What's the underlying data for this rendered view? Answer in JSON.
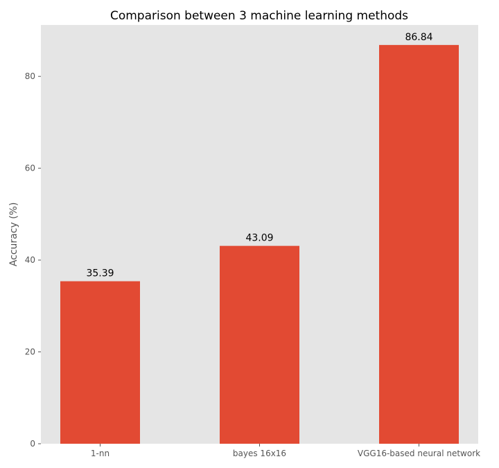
{
  "chart_data": {
    "type": "bar",
    "title": "Comparison between 3 machine learning methods",
    "xlabel": "",
    "ylabel": "Accuracy (%)",
    "categories": [
      "1-nn",
      "bayes 16x16",
      "VGG16-based neural network"
    ],
    "values": [
      35.39,
      43.09,
      86.84
    ],
    "value_labels": [
      "35.39",
      "43.09",
      "86.84"
    ],
    "ylim": [
      0,
      91.2
    ],
    "yticks": [
      0,
      20,
      40,
      60,
      80
    ],
    "grid": false,
    "bar_color": "#E24A33",
    "plot_background": "#E5E5E5"
  }
}
